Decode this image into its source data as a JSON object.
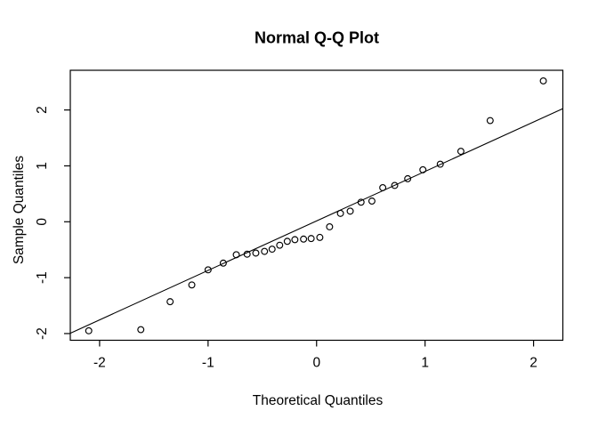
{
  "figure": {
    "background": "#ffffff",
    "foreground": "#000000"
  },
  "chart_data": {
    "type": "scatter",
    "title": "Normal Q-Q Plot",
    "xlabel": "Theoretical Quantiles",
    "ylabel": "Sample Quantiles",
    "xlim": [
      -2.27,
      2.27
    ],
    "ylim": [
      -2.12,
      2.71
    ],
    "x_ticks": [
      "-2",
      "-1",
      "0",
      "1",
      "2"
    ],
    "x_tick_values": [
      -2,
      -1,
      0,
      1,
      2
    ],
    "y_ticks": [
      "-2",
      "-1",
      "0",
      "1",
      "2"
    ],
    "y_tick_values": [
      -2,
      -1,
      0,
      1,
      2
    ],
    "grid": false,
    "legend": "none",
    "marker": "open-circle",
    "point_color": "#000000",
    "line_color": "#000000",
    "series": [
      {
        "name": "sample-quantile-points",
        "points": [
          [
            -2.1,
            -1.95
          ],
          [
            -1.62,
            -1.93
          ],
          [
            -1.35,
            -1.43
          ],
          [
            -1.15,
            -1.13
          ],
          [
            -1.0,
            -0.86
          ],
          [
            -0.86,
            -0.74
          ],
          [
            -0.74,
            -0.59
          ],
          [
            -0.64,
            -0.58
          ],
          [
            -0.56,
            -0.56
          ],
          [
            -0.48,
            -0.53
          ],
          [
            -0.41,
            -0.49
          ],
          [
            -0.34,
            -0.42
          ],
          [
            -0.27,
            -0.35
          ],
          [
            -0.2,
            -0.32
          ],
          [
            -0.12,
            -0.31
          ],
          [
            -0.05,
            -0.3
          ],
          [
            0.03,
            -0.28
          ],
          [
            0.12,
            -0.09
          ],
          [
            0.22,
            0.15
          ],
          [
            0.31,
            0.19
          ],
          [
            0.41,
            0.35
          ],
          [
            0.51,
            0.37
          ],
          [
            0.61,
            0.61
          ],
          [
            0.72,
            0.65
          ],
          [
            0.84,
            0.77
          ],
          [
            0.98,
            0.93
          ],
          [
            1.14,
            1.03
          ],
          [
            1.33,
            1.26
          ],
          [
            1.6,
            1.81
          ],
          [
            2.09,
            2.52
          ]
        ]
      }
    ],
    "reference_line": {
      "name": "qq-line",
      "slope": 0.885,
      "intercept": 0.015
    }
  }
}
